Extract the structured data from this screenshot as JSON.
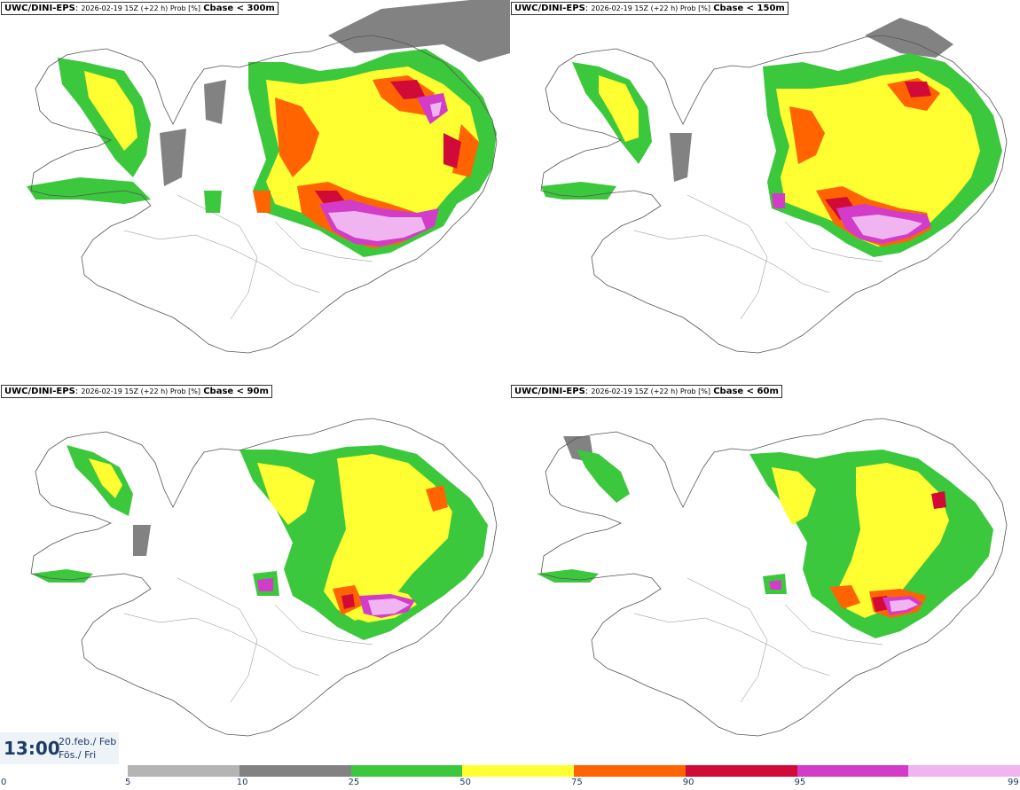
{
  "panels": [
    {
      "model": "UWC/DINI-EPS",
      "meta": "2026-02-19 15Z (+22 h) Prob [%]",
      "variable": "Cbase < 300m"
    },
    {
      "model": "UWC/DINI-EPS",
      "meta": "2026-02-19 15Z (+22 h) Prob [%]",
      "variable": "Cbase < 150m"
    },
    {
      "model": "UWC/DINI-EPS",
      "meta": "2026-02-19 15Z (+22 h) Prob [%]",
      "variable": "Cbase < 90m"
    },
    {
      "model": "UWC/DINI-EPS",
      "meta": "2026-02-19 15Z (+22 h) Prob [%]",
      "variable": "Cbase < 60m"
    }
  ],
  "valid_time": {
    "time": "13:00",
    "date": "20.feb./ Feb",
    "day": "Fös./ Fri"
  },
  "legend": {
    "ticks": [
      "0",
      "5",
      "10",
      "25",
      "50",
      "75",
      "90",
      "95",
      "99"
    ],
    "colors": [
      "#b4b4b4",
      "#828282",
      "#3cc83c",
      "#ffff32",
      "#ff6400",
      "#d20a37",
      "#d23cc8",
      "#f0b4f0"
    ]
  }
}
